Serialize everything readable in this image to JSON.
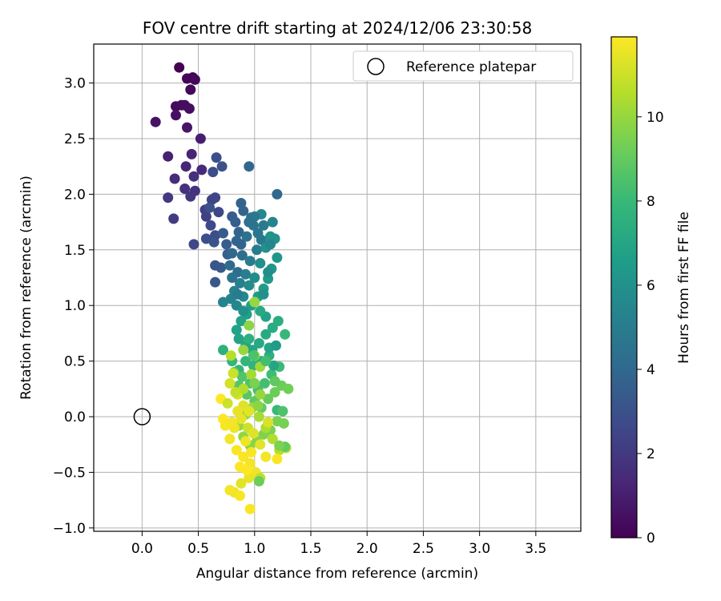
{
  "chart_data": {
    "type": "scatter",
    "title": "FOV centre drift starting at 2024/12/06 23:30:58",
    "xlabel": "Angular distance from reference (arcmin)",
    "ylabel": "Rotation from reference (arcmin)",
    "xlim": [
      -0.43,
      3.9
    ],
    "ylim": [
      -1.03,
      3.35
    ],
    "xticks": [
      "0.0",
      "0.5",
      "1.0",
      "1.5",
      "2.0",
      "2.5",
      "3.0",
      "3.5"
    ],
    "xtick_values": [
      0,
      0.5,
      1.0,
      1.5,
      2.0,
      2.5,
      3.0,
      3.5
    ],
    "yticks": [
      "−1.0",
      "−0.5",
      "0.0",
      "0.5",
      "1.0",
      "1.5",
      "2.0",
      "2.5",
      "3.0"
    ],
    "ytick_values": [
      -1.0,
      -0.5,
      0,
      0.5,
      1.0,
      1.5,
      2.0,
      2.5,
      3.0
    ],
    "grid": true,
    "legend": {
      "position": "top-right",
      "entries": [
        "Reference platepar"
      ]
    },
    "reference_point": {
      "x": 0.0,
      "y": 0.0
    },
    "colorbar": {
      "label": "Hours from first FF file",
      "range": [
        0,
        11.9
      ],
      "ticks": [
        "0",
        "2",
        "4",
        "6",
        "8",
        "10"
      ],
      "tick_values": [
        0,
        2,
        4,
        6,
        8,
        10
      ],
      "colormap": "viridis",
      "stops": [
        "#440154",
        "#482878",
        "#3e4989",
        "#31688e",
        "#26828e",
        "#1f9e89",
        "#35b779",
        "#6ece58",
        "#b5de2b",
        "#fde725"
      ]
    },
    "points": [
      [
        0.33,
        3.14,
        0.0
      ],
      [
        0.4,
        3.04,
        0.1
      ],
      [
        0.45,
        3.05,
        0.15
      ],
      [
        0.47,
        3.03,
        0.2
      ],
      [
        0.43,
        2.94,
        0.25
      ],
      [
        0.3,
        2.79,
        0.3
      ],
      [
        0.35,
        2.8,
        0.35
      ],
      [
        0.38,
        2.8,
        0.4
      ],
      [
        0.42,
        2.77,
        0.45
      ],
      [
        0.3,
        2.71,
        0.5
      ],
      [
        0.12,
        2.65,
        0.6
      ],
      [
        0.4,
        2.6,
        0.7
      ],
      [
        0.52,
        2.5,
        1.0
      ],
      [
        0.23,
        2.34,
        1.1
      ],
      [
        0.44,
        2.36,
        1.2
      ],
      [
        0.39,
        2.25,
        1.3
      ],
      [
        0.53,
        2.22,
        1.4
      ],
      [
        0.29,
        2.14,
        1.5
      ],
      [
        0.46,
        2.16,
        1.6
      ],
      [
        0.38,
        2.05,
        1.7
      ],
      [
        0.47,
        2.03,
        1.8
      ],
      [
        0.43,
        1.98,
        1.9
      ],
      [
        0.23,
        1.97,
        2.0
      ],
      [
        0.28,
        1.78,
        2.1
      ],
      [
        0.56,
        1.86,
        2.2
      ],
      [
        0.57,
        1.8,
        2.3
      ],
      [
        0.62,
        1.95,
        2.4
      ],
      [
        0.65,
        1.97,
        2.5
      ],
      [
        0.68,
        1.84,
        2.6
      ],
      [
        0.61,
        1.72,
        2.7
      ],
      [
        0.65,
        1.63,
        2.8
      ],
      [
        0.57,
        1.6,
        2.9
      ],
      [
        0.46,
        1.55,
        2.6
      ],
      [
        0.63,
        2.2,
        2.8
      ],
      [
        0.66,
        2.33,
        2.9
      ],
      [
        0.71,
        2.25,
        3.0
      ],
      [
        0.6,
        1.88,
        3.0
      ],
      [
        0.64,
        1.57,
        3.1
      ],
      [
        0.65,
        1.36,
        3.2
      ],
      [
        0.65,
        1.21,
        3.3
      ],
      [
        0.7,
        1.34,
        3.3
      ],
      [
        0.72,
        1.65,
        3.4
      ],
      [
        0.75,
        1.55,
        3.5
      ],
      [
        0.76,
        1.46,
        3.6
      ],
      [
        0.8,
        1.8,
        3.5
      ],
      [
        0.83,
        1.75,
        3.6
      ],
      [
        0.88,
        1.92,
        3.7
      ],
      [
        0.9,
        1.85,
        3.8
      ],
      [
        0.86,
        1.66,
        3.8
      ],
      [
        0.84,
        1.58,
        3.9
      ],
      [
        0.95,
        2.25,
        3.9
      ],
      [
        0.8,
        1.47,
        4.0
      ],
      [
        0.78,
        1.36,
        4.1
      ],
      [
        0.85,
        1.3,
        4.2
      ],
      [
        0.89,
        1.45,
        4.3
      ],
      [
        0.93,
        1.62,
        4.4
      ],
      [
        0.97,
        1.79,
        4.5
      ],
      [
        0.99,
        1.72,
        4.6
      ],
      [
        1.03,
        1.65,
        4.7
      ],
      [
        1.06,
        1.59,
        4.8
      ],
      [
        1.08,
        1.72,
        4.9
      ],
      [
        1.02,
        1.5,
        5.0
      ],
      [
        0.96,
        1.4,
        5.0
      ],
      [
        0.92,
        1.28,
        5.1
      ],
      [
        0.87,
        1.2,
        5.2
      ],
      [
        0.82,
        1.13,
        5.3
      ],
      [
        0.79,
        1.06,
        5.3
      ],
      [
        0.72,
        1.03,
        5.4
      ],
      [
        0.84,
        1.0,
        5.5
      ],
      [
        0.9,
        1.08,
        5.6
      ],
      [
        0.95,
        1.18,
        5.7
      ],
      [
        1.0,
        1.25,
        5.8
      ],
      [
        1.05,
        1.38,
        5.9
      ],
      [
        1.1,
        1.52,
        6.0
      ],
      [
        1.14,
        1.62,
        6.1
      ],
      [
        1.18,
        1.6,
        6.1
      ],
      [
        1.2,
        1.43,
        6.2
      ],
      [
        1.15,
        1.33,
        6.3
      ],
      [
        1.12,
        1.24,
        6.4
      ],
      [
        1.08,
        1.15,
        6.5
      ],
      [
        1.03,
        1.08,
        6.5
      ],
      [
        0.97,
        1.0,
        6.6
      ],
      [
        0.93,
        0.92,
        6.7
      ],
      [
        0.88,
        0.86,
        6.8
      ],
      [
        0.84,
        0.78,
        6.8
      ],
      [
        0.86,
        0.7,
        6.9
      ],
      [
        0.92,
        0.64,
        7.0
      ],
      [
        0.98,
        0.6,
        7.0
      ],
      [
        1.04,
        0.66,
        7.1
      ],
      [
        1.1,
        0.74,
        7.2
      ],
      [
        1.16,
        0.8,
        7.3
      ],
      [
        1.21,
        0.86,
        7.4
      ],
      [
        1.13,
        0.55,
        7.5
      ],
      [
        1.06,
        0.5,
        7.6
      ],
      [
        0.99,
        0.46,
        7.7
      ],
      [
        0.92,
        0.5,
        7.8
      ],
      [
        0.86,
        0.42,
        7.8
      ],
      [
        0.8,
        0.5,
        7.9
      ],
      [
        0.72,
        0.6,
        7.5
      ],
      [
        1.27,
        0.74,
        8.0
      ],
      [
        1.22,
        0.45,
        8.1
      ],
      [
        1.15,
        0.38,
        8.2
      ],
      [
        1.09,
        0.3,
        8.3
      ],
      [
        1.03,
        0.24,
        8.4
      ],
      [
        0.96,
        0.3,
        8.5
      ],
      [
        0.89,
        0.36,
        8.6
      ],
      [
        0.82,
        0.4,
        8.6
      ],
      [
        0.86,
        0.28,
        8.7
      ],
      [
        0.93,
        0.2,
        8.8
      ],
      [
        1.0,
        0.14,
        8.9
      ],
      [
        1.06,
        0.08,
        9.0
      ],
      [
        1.12,
        0.16,
        9.1
      ],
      [
        1.18,
        0.22,
        9.2
      ],
      [
        1.24,
        0.28,
        9.2
      ],
      [
        1.3,
        0.25,
        9.3
      ],
      [
        1.2,
        -0.04,
        9.4
      ],
      [
        1.26,
        -0.06,
        9.4
      ],
      [
        1.14,
        -0.12,
        9.5
      ],
      [
        1.08,
        -0.16,
        9.6
      ],
      [
        1.02,
        -0.22,
        9.7
      ],
      [
        0.96,
        -0.26,
        9.8
      ],
      [
        0.9,
        -0.18,
        9.9
      ],
      [
        0.86,
        -0.08,
        10.0
      ],
      [
        0.92,
        0.02,
        10.1
      ],
      [
        0.98,
        0.08,
        10.2
      ],
      [
        1.04,
        0.0,
        10.3
      ],
      [
        1.1,
        -0.1,
        10.4
      ],
      [
        1.16,
        -0.2,
        10.5
      ],
      [
        1.22,
        -0.3,
        10.6
      ],
      [
        1.28,
        -0.28,
        10.7
      ],
      [
        0.9,
        0.6,
        10.0
      ],
      [
        1.0,
        0.55,
        10.1
      ],
      [
        1.05,
        0.45,
        10.2
      ],
      [
        0.97,
        0.38,
        10.3
      ],
      [
        1.0,
        1.03,
        10.0
      ],
      [
        0.95,
        0.82,
        9.8
      ],
      [
        0.79,
        0.55,
        10.6
      ],
      [
        0.81,
        0.39,
        11.0
      ],
      [
        0.78,
        0.3,
        11.1
      ],
      [
        0.85,
        0.2,
        11.2
      ],
      [
        0.9,
        0.1,
        11.3
      ],
      [
        0.95,
        0.05,
        11.4
      ],
      [
        0.88,
        -0.02,
        11.5
      ],
      [
        0.82,
        -0.1,
        11.6
      ],
      [
        0.78,
        -0.2,
        11.7
      ],
      [
        0.84,
        -0.3,
        11.8
      ],
      [
        0.9,
        -0.36,
        11.8
      ],
      [
        0.96,
        -0.42,
        11.7
      ],
      [
        1.01,
        -0.5,
        11.6
      ],
      [
        0.95,
        -0.55,
        11.5
      ],
      [
        0.88,
        -0.6,
        11.4
      ],
      [
        0.82,
        -0.68,
        11.6
      ],
      [
        0.78,
        -0.66,
        11.7
      ],
      [
        0.87,
        -0.71,
        11.8
      ],
      [
        0.96,
        -0.83,
        11.8
      ],
      [
        0.72,
        -0.02,
        11.9
      ],
      [
        0.7,
        0.16,
        11.9
      ],
      [
        0.74,
        -0.08,
        11.8
      ],
      [
        1.2,
        -0.38,
        11.8
      ],
      [
        1.1,
        -0.36,
        11.7
      ],
      [
        1.05,
        -0.55,
        10.8
      ],
      [
        1.04,
        -0.58,
        9.2
      ],
      [
        1.27,
        -0.27,
        9.0
      ],
      [
        1.22,
        -0.26,
        9.5
      ],
      [
        1.2,
        0.06,
        8.0
      ],
      [
        1.25,
        0.05,
        8.5
      ],
      [
        1.17,
        0.46,
        7.0
      ],
      [
        1.13,
        0.62,
        6.9
      ],
      [
        1.19,
        0.64,
        6.5
      ],
      [
        1.1,
        0.9,
        6.8
      ],
      [
        1.05,
        0.95,
        7.2
      ],
      [
        1.08,
        1.1,
        6.0
      ],
      [
        1.12,
        1.3,
        5.8
      ],
      [
        1.14,
        1.55,
        5.5
      ],
      [
        1.16,
        1.75,
        5.4
      ],
      [
        1.06,
        1.82,
        5.6
      ],
      [
        1.0,
        1.8,
        4.8
      ],
      [
        0.95,
        1.75,
        4.5
      ],
      [
        1.2,
        2.0,
        4.0
      ],
      [
        0.88,
        1.55,
        3.8
      ],
      [
        0.8,
        1.25,
        4.5
      ],
      [
        0.85,
        1.1,
        5.0
      ],
      [
        0.9,
        0.95,
        6.0
      ],
      [
        0.95,
        0.7,
        7.5
      ],
      [
        1.0,
        0.3,
        9.5
      ],
      [
        1.05,
        0.2,
        10.0
      ],
      [
        0.9,
        0.25,
        10.5
      ],
      [
        0.94,
        -0.1,
        11.0
      ],
      [
        0.99,
        -0.15,
        11.3
      ],
      [
        1.05,
        -0.25,
        11.4
      ],
      [
        0.85,
        0.05,
        11.5
      ],
      [
        0.8,
        -0.05,
        11.7
      ],
      [
        0.92,
        -0.22,
        11.6
      ],
      [
        0.87,
        -0.45,
        11.9
      ],
      [
        0.93,
        -0.48,
        11.9
      ],
      [
        0.97,
        -0.32,
        11.8
      ],
      [
        1.12,
        -0.05,
        11.2
      ],
      [
        1.03,
        0.1,
        9.8
      ],
      [
        0.99,
        0.55,
        8.5
      ],
      [
        1.1,
        0.5,
        8.3
      ],
      [
        1.18,
        0.32,
        8.9
      ],
      [
        0.83,
        0.22,
        10.8
      ],
      [
        0.76,
        0.12,
        11.0
      ]
    ]
  }
}
